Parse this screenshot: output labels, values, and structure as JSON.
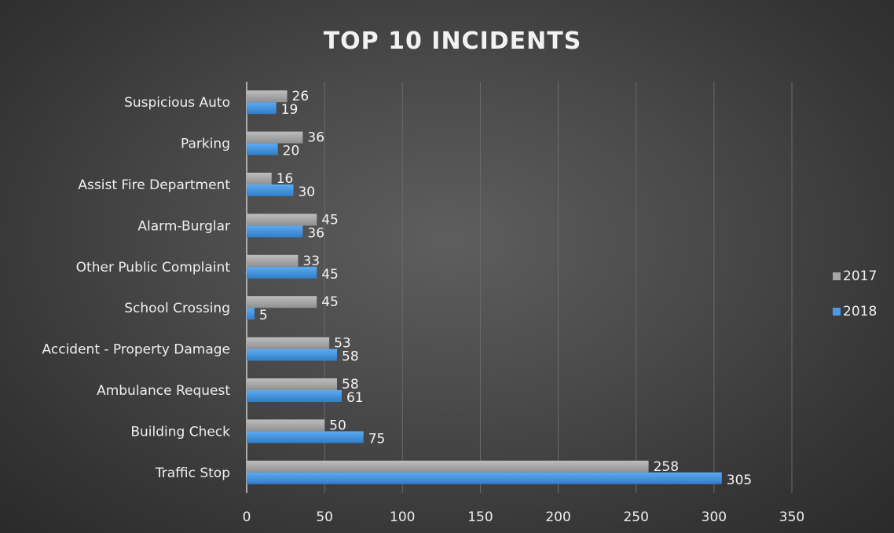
{
  "chart_data": {
    "type": "bar",
    "orientation": "horizontal",
    "title": "TOP 10 INCIDENTS",
    "categories": [
      "Suspicious Auto",
      "Parking",
      "Assist Fire Department",
      "Alarm-Burglar",
      "Other Public Complaint",
      "School Crossing",
      "Accident - Property Damage",
      "Ambulance Request",
      "Building Check",
      "Traffic Stop"
    ],
    "series": [
      {
        "name": "2017",
        "color": "#a6a6a6",
        "values": [
          26,
          36,
          16,
          45,
          33,
          45,
          53,
          58,
          50,
          258
        ]
      },
      {
        "name": "2018",
        "color": "#4a9be4",
        "values": [
          19,
          20,
          30,
          36,
          45,
          5,
          58,
          61,
          75,
          305
        ]
      }
    ],
    "xlim": [
      0,
      350
    ],
    "xticks": [
      0,
      50,
      100,
      150,
      200,
      250,
      300,
      350
    ],
    "grid": "vertical",
    "legend": "right",
    "data_labels": true
  }
}
